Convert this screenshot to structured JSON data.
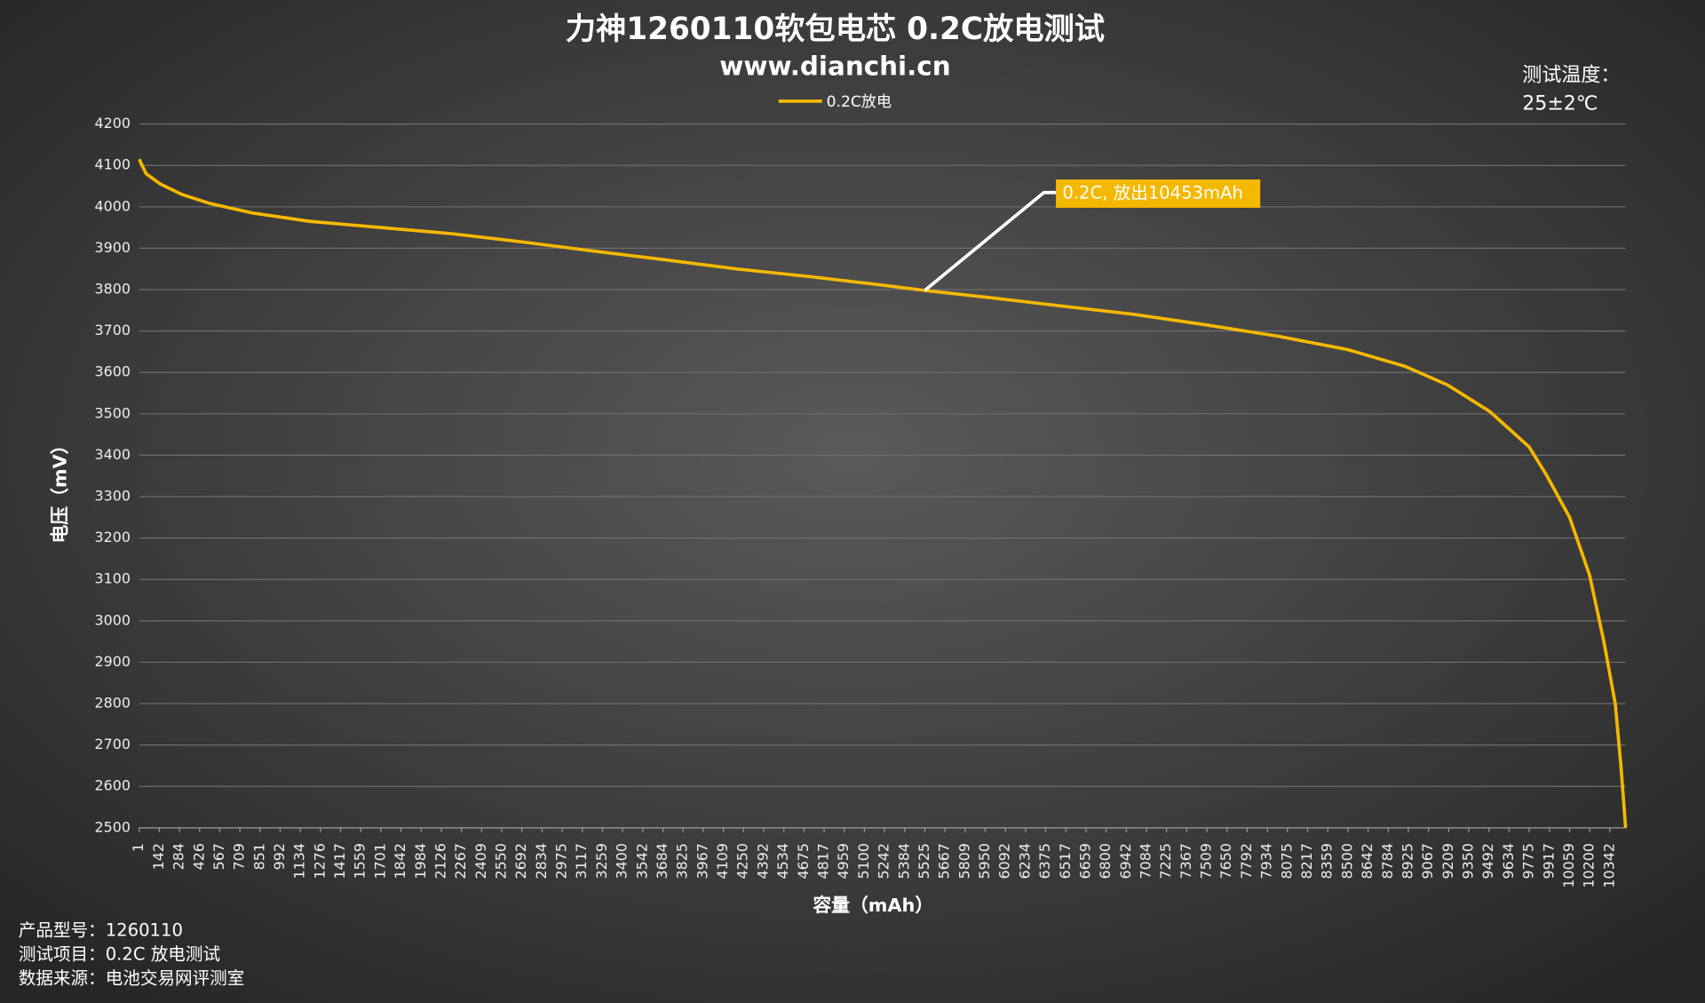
{
  "chart_data": {
    "type": "line",
    "title": "力神1260110软包电芯 0.2C放电测试",
    "subtitle": "www.dianchi.cn",
    "temperature_label": "测试温度：",
    "temperature_value": "25±2℃",
    "x_label": "容量（mAh）",
    "y_label": "电压（mV）",
    "annotation": "0.2C, 放出10453mAh",
    "footer": [
      "产品型号：1260110",
      "测试项目：0.2C 放电测试",
      "数据来源：电池交易网评测室"
    ],
    "xlim": [
      1,
      10453
    ],
    "xticks": [
      1,
      142,
      284,
      426,
      567,
      709,
      851,
      992,
      1134,
      1276,
      1417,
      1559,
      1701,
      1842,
      1984,
      2126,
      2267,
      2409,
      2550,
      2692,
      2834,
      2975,
      3117,
      3259,
      3400,
      3542,
      3684,
      3825,
      3967,
      4109,
      4250,
      4392,
      4534,
      4675,
      4817,
      4959,
      5100,
      5242,
      5384,
      5525,
      5667,
      5809,
      5950,
      6092,
      6234,
      6375,
      6517,
      6659,
      6800,
      6942,
      7084,
      7225,
      7367,
      7509,
      7650,
      7792,
      7934,
      8075,
      8217,
      8359,
      8500,
      8642,
      8784,
      8925,
      9067,
      9209,
      9350,
      9492,
      9634,
      9775,
      9917,
      10059,
      10200,
      10342
    ],
    "ylim": [
      2500,
      4200
    ],
    "yticks": [
      2500,
      2600,
      2700,
      2800,
      2900,
      3000,
      3100,
      3200,
      3300,
      3400,
      3500,
      3600,
      3700,
      3800,
      3900,
      4000,
      4100,
      4200
    ],
    "grid": true,
    "x": [
      1,
      50,
      150,
      300,
      500,
      800,
      1200,
      1700,
      2200,
      2700,
      3200,
      3700,
      4200,
      4700,
      5200,
      5525,
      6000,
      6500,
      7000,
      7500,
      8000,
      8500,
      8900,
      9200,
      9500,
      9775,
      9900,
      10059,
      10200,
      10300,
      10380,
      10420,
      10453
    ],
    "series": [
      {
        "name": "0.2C放电",
        "color": "#f5b800",
        "values": [
          4115,
          4080,
          4055,
          4030,
          4008,
          3985,
          3965,
          3950,
          3935,
          3915,
          3893,
          3872,
          3850,
          3832,
          3812,
          3798,
          3780,
          3760,
          3740,
          3715,
          3688,
          3655,
          3615,
          3570,
          3505,
          3420,
          3350,
          3250,
          3110,
          2950,
          2800,
          2650,
          2500
        ]
      }
    ]
  }
}
